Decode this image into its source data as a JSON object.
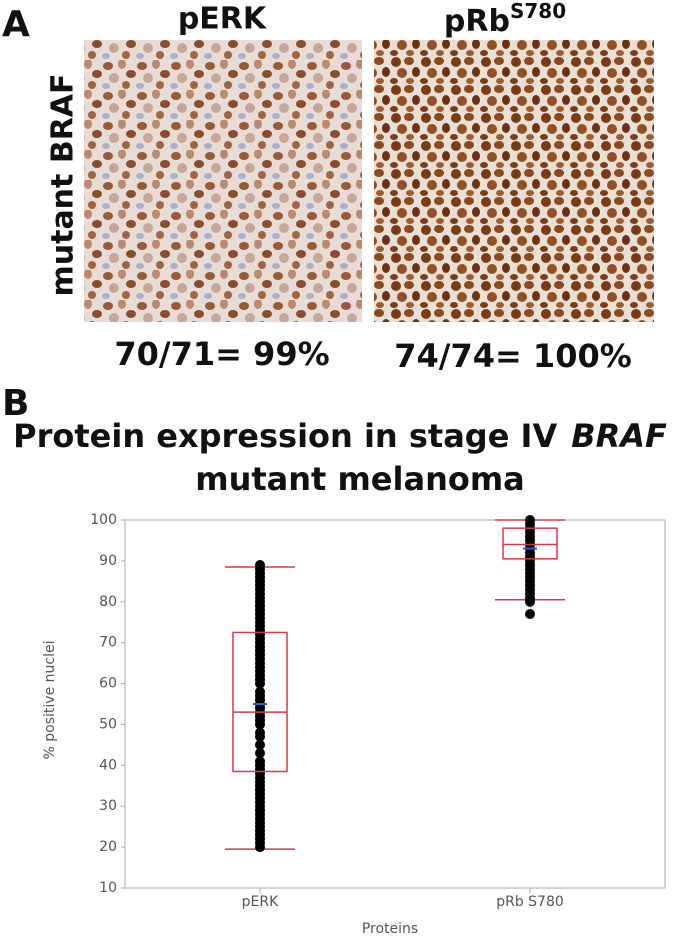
{
  "panel_a": {
    "label": "A",
    "row_label": "mutant BRAF",
    "columns": [
      {
        "label": "pERK",
        "caption": "70/71= 99%"
      },
      {
        "label": "pRb",
        "superscript": "S780",
        "caption": "74/74= 100%"
      }
    ]
  },
  "chart_data": {
    "type": "box",
    "panel_label": "B",
    "title": [
      "Protein expression in stage IV",
      "BRAF",
      "mutant melanoma"
    ],
    "x_label": "Proteins",
    "y_label": "% positive nuclei",
    "categories": [
      "pERK",
      "pRb S780"
    ],
    "ylim": [
      10,
      100
    ],
    "yticks": [
      10,
      20,
      30,
      40,
      50,
      60,
      70,
      80,
      90,
      100
    ],
    "box_color": "#d03c4c",
    "mean_color": "#2a5bd7",
    "point_color": "#000000",
    "boxes": [
      {
        "whisker_low": 19.5,
        "q1": 38.5,
        "median": 53,
        "q3": 72.5,
        "whisker_high": 88.5,
        "mean": 55
      },
      {
        "whisker_low": 80.5,
        "q1": 90.5,
        "median": 94,
        "q3": 98,
        "whisker_high": 100,
        "mean": 93
      }
    ],
    "points": [
      [
        20,
        21,
        22,
        23,
        24,
        25,
        26,
        27,
        28,
        29,
        30,
        31,
        32,
        33,
        34,
        35,
        36,
        37,
        38,
        39,
        40,
        41,
        43,
        45,
        47,
        48,
        50,
        51,
        52,
        53,
        54,
        55,
        56,
        57,
        58,
        60,
        61,
        62,
        63,
        64,
        65,
        66,
        67,
        68,
        69,
        70,
        71,
        72,
        73,
        74,
        75,
        76,
        77,
        78,
        79,
        80,
        81,
        82,
        83,
        84,
        85,
        86,
        87,
        88,
        89
      ],
      [
        77,
        80,
        81,
        82,
        83,
        84,
        85,
        86,
        87,
        88,
        89,
        90,
        91,
        92,
        93,
        94,
        95,
        96,
        97,
        98,
        99,
        100
      ]
    ]
  }
}
